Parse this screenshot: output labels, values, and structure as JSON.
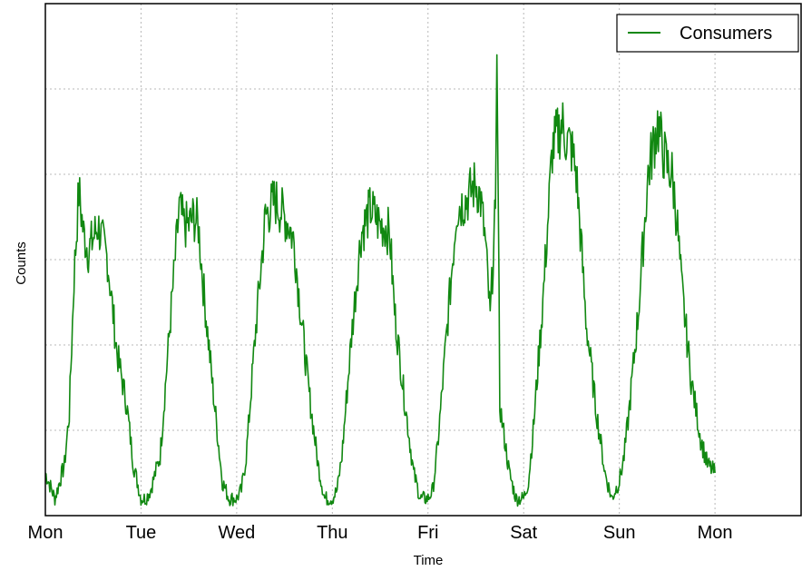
{
  "chart_data": {
    "type": "line",
    "title": "",
    "xlabel": "Time",
    "ylabel": "Counts",
    "x_tick_labels": [
      "Mon",
      "Tue",
      "Wed",
      "Thu",
      "Fri",
      "Sat",
      "Sun",
      "Mon"
    ],
    "xlim": [
      0,
      7.9
    ],
    "ylim": [
      0,
      6
    ],
    "grid": true,
    "legend_position": "top-right",
    "series": [
      {
        "name": "Consumers",
        "color": "#118811",
        "x": [
          0.0,
          0.1,
          0.2,
          0.25,
          0.3,
          0.35,
          0.4,
          0.45,
          0.55,
          0.65,
          0.75,
          0.85,
          0.92,
          1.0,
          1.05,
          1.1,
          1.2,
          1.3,
          1.4,
          1.45,
          1.5,
          1.55,
          1.6,
          1.65,
          1.75,
          1.85,
          1.92,
          2.0,
          2.05,
          2.1,
          2.2,
          2.3,
          2.4,
          2.45,
          2.5,
          2.55,
          2.6,
          2.65,
          2.75,
          2.85,
          2.92,
          3.0,
          3.05,
          3.1,
          3.2,
          3.3,
          3.4,
          3.45,
          3.5,
          3.55,
          3.6,
          3.65,
          3.75,
          3.85,
          3.92,
          4.0,
          4.05,
          4.1,
          4.2,
          4.3,
          4.4,
          4.45,
          4.5,
          4.55,
          4.6,
          4.65,
          4.75,
          4.85,
          4.92,
          5.0,
          5.05,
          5.1,
          5.2,
          5.3,
          5.4,
          5.45,
          5.5,
          5.55,
          5.6,
          5.65,
          5.75,
          5.85,
          5.92,
          6.0,
          6.05,
          6.1,
          6.2,
          6.3,
          6.4,
          6.45,
          6.5,
          6.55,
          6.6,
          6.65,
          6.75,
          6.85,
          6.92,
          7.0
        ],
        "y": [
          0.5,
          0.2,
          0.6,
          1.2,
          2.8,
          3.8,
          3.3,
          3.1,
          3.4,
          3.0,
          1.9,
          1.3,
          0.6,
          0.2,
          0.2,
          0.3,
          0.7,
          2.2,
          3.6,
          3.4,
          3.4,
          3.5,
          3.4,
          2.7,
          1.5,
          0.4,
          0.2,
          0.2,
          0.3,
          0.7,
          2.2,
          3.5,
          3.7,
          3.6,
          3.5,
          3.4,
          3.2,
          2.6,
          1.5,
          0.6,
          0.2,
          0.2,
          0.3,
          0.7,
          2.1,
          3.3,
          3.6,
          3.5,
          3.4,
          3.4,
          3.3,
          2.4,
          1.4,
          0.5,
          0.2,
          0.2,
          0.3,
          0.8,
          2.2,
          3.6,
          3.7,
          3.8,
          3.9,
          3.7,
          3.2,
          2.3,
          1.3,
          0.5,
          0.2,
          0.2,
          0.4,
          1.0,
          2.5,
          4.3,
          4.6,
          4.4,
          4.3,
          4.0,
          3.2,
          2.3,
          1.3,
          0.5,
          0.2,
          0.4,
          0.7,
          1.2,
          2.4,
          4.0,
          4.6,
          4.3,
          4.1,
          4.0,
          3.5,
          2.7,
          1.6,
          0.9,
          0.6,
          0.5
        ],
        "spike": {
          "x": 4.72,
          "y": 5.4
        }
      }
    ]
  }
}
